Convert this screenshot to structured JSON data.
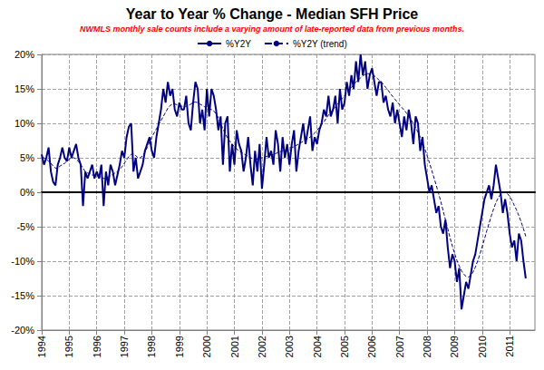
{
  "chart_data": {
    "type": "line",
    "title": "Year to Year % Change - Median SFH Price",
    "subtitle": "NWMLS monthly sale counts include a varying amount of late-reported data from previous months.",
    "categories": [
      "1994",
      null,
      null,
      null,
      null,
      null,
      null,
      null,
      null,
      null,
      null,
      null,
      "1995",
      null,
      null,
      null,
      null,
      null,
      null,
      null,
      null,
      null,
      null,
      null,
      "1996",
      null,
      null,
      null,
      null,
      null,
      null,
      null,
      null,
      null,
      null,
      null,
      "1997",
      null,
      null,
      null,
      null,
      null,
      null,
      null,
      null,
      null,
      null,
      null,
      "1998",
      null,
      null,
      null,
      null,
      null,
      null,
      null,
      null,
      null,
      null,
      null,
      "1999",
      null,
      null,
      null,
      null,
      null,
      null,
      null,
      null,
      null,
      null,
      null,
      "2000",
      null,
      null,
      null,
      null,
      null,
      null,
      null,
      null,
      null,
      null,
      null,
      "2001",
      null,
      null,
      null,
      null,
      null,
      null,
      null,
      null,
      null,
      null,
      null,
      "2002",
      null,
      null,
      null,
      null,
      null,
      null,
      null,
      null,
      null,
      null,
      null,
      "2003",
      null,
      null,
      null,
      null,
      null,
      null,
      null,
      null,
      null,
      null,
      null,
      "2004",
      null,
      null,
      null,
      null,
      null,
      null,
      null,
      null,
      null,
      null,
      null,
      "2005",
      null,
      null,
      null,
      null,
      null,
      null,
      null,
      null,
      null,
      null,
      null,
      "2006",
      null,
      null,
      null,
      null,
      null,
      null,
      null,
      null,
      null,
      null,
      null,
      "2007",
      null,
      null,
      null,
      null,
      null,
      null,
      null,
      null,
      null,
      null,
      null,
      "2008",
      null,
      null,
      null,
      null,
      null,
      null,
      null,
      null,
      null,
      null,
      null,
      "2009",
      null,
      null,
      null,
      null,
      null,
      null,
      null,
      null,
      null,
      null,
      null,
      "2010",
      null,
      null,
      null,
      null,
      null,
      null,
      null,
      null,
      null,
      null,
      null,
      "2011",
      null,
      null,
      null,
      null,
      null,
      null,
      null,
      null,
      null,
      null,
      null
    ],
    "series": [
      {
        "name": "%Y2Y",
        "color": "#000080",
        "line_style": "solid",
        "values": [
          5.5,
          4,
          5,
          6.5,
          3,
          1.5,
          1,
          4,
          5,
          6.5,
          5,
          4.5,
          6.5,
          5,
          6,
          7,
          5,
          4,
          -2,
          3,
          2,
          3,
          4,
          2,
          3,
          2,
          4,
          -2,
          3,
          1,
          4,
          3,
          1,
          2.5,
          4,
          6,
          5,
          8,
          9.5,
          10,
          3,
          5,
          2,
          3,
          4,
          6,
          7,
          8,
          6,
          5,
          8,
          10,
          12,
          15,
          13,
          16,
          14,
          15,
          12,
          11,
          13,
          12,
          12,
          14,
          10,
          9,
          13,
          16,
          15,
          10,
          12,
          9,
          15,
          11,
          15,
          14,
          12,
          9,
          11,
          4,
          10,
          11,
          3,
          7,
          4,
          9,
          7,
          6,
          3,
          5,
          8,
          4,
          1,
          6,
          3,
          7,
          0.5,
          4,
          8,
          5,
          6,
          4,
          9,
          7,
          3,
          8,
          5,
          7,
          4,
          7,
          9,
          3,
          6,
          8,
          10,
          7,
          9,
          11,
          6,
          8,
          7,
          9,
          10,
          12,
          11,
          14,
          11,
          12,
          14,
          10,
          15,
          12,
          13,
          16,
          14,
          17,
          15,
          19,
          16,
          20,
          17,
          19,
          15,
          17,
          18,
          16,
          14,
          16,
          16,
          13,
          14,
          12,
          11,
          13,
          10,
          12,
          10,
          8,
          11,
          9,
          12,
          10,
          7,
          11,
          10,
          6,
          8,
          4,
          2,
          0,
          1,
          -1,
          -3,
          -2,
          -5,
          -6,
          -4,
          -8,
          -11,
          -9,
          -10,
          -13,
          -11,
          -17,
          -15,
          -13,
          -14,
          -12,
          -10,
          -9,
          -7,
          -5,
          -3,
          -1,
          0,
          1,
          -1,
          1,
          4,
          2,
          0,
          -3,
          -1,
          -3,
          -6,
          -8,
          -7,
          -10,
          -6,
          -7,
          -10,
          -12.5,
          null,
          null,
          null,
          null
        ]
      },
      {
        "name": "%Y2Y (trend)",
        "color": "#000080",
        "line_style": "dashed",
        "values": [
          5,
          5,
          4.8,
          4.5,
          4.2,
          3.8,
          3.5,
          3.5,
          3.8,
          4,
          4.2,
          4.5,
          4.8,
          5,
          5,
          4.8,
          4.5,
          4,
          3.5,
          3,
          2.8,
          2.7,
          2.5,
          2.5,
          2.4,
          2.3,
          2.2,
          2,
          2,
          2.2,
          2.4,
          2.6,
          2.8,
          3,
          3.3,
          3.7,
          4.2,
          4.7,
          5.2,
          5.5,
          5.5,
          5.3,
          5,
          5,
          5.3,
          5.8,
          6.5,
          7.3,
          8,
          8.6,
          9.2,
          9.8,
          10.4,
          11,
          11.6,
          12.2,
          12.6,
          12.8,
          12.8,
          12.7,
          12.6,
          12.5,
          12.4,
          12.5,
          12.6,
          12.8,
          13,
          13.1,
          13,
          12.8,
          12.6,
          12.4,
          12.2,
          12.1,
          12,
          11.8,
          11.4,
          10.8,
          10,
          9.2,
          8.5,
          7.9,
          7.4,
          7,
          6.6,
          6.3,
          6,
          5.8,
          5.6,
          5.4,
          5.2,
          5,
          4.9,
          4.8,
          4.8,
          4.9,
          5,
          5.1,
          5.2,
          5.3,
          5.4,
          5.5,
          5.6,
          5.8,
          5.9,
          6,
          6.1,
          6.3,
          6.4,
          6.5,
          6.6,
          6.8,
          7,
          7.2,
          7.4,
          7.6,
          7.8,
          8,
          8.3,
          8.6,
          9,
          9.4,
          9.8,
          10.2,
          10.7,
          11.2,
          11.6,
          12,
          12.4,
          12.8,
          13.2,
          13.6,
          14,
          14.4,
          14.8,
          15.2,
          15.6,
          16,
          16.3,
          16.6,
          16.9,
          17.1,
          17.2,
          17.2,
          17.1,
          16.9,
          16.6,
          16.3,
          16,
          15.6,
          15.2,
          14.8,
          14.3,
          13.9,
          13.5,
          13.1,
          12.7,
          12.3,
          11.9,
          11.5,
          11,
          10.5,
          10,
          9.4,
          8.7,
          8,
          7.2,
          6.3,
          5.3,
          4.3,
          3.2,
          2.1,
          1,
          -0.2,
          -1.4,
          -2.7,
          -4,
          -5.3,
          -6.6,
          -7.8,
          -8.9,
          -9.9,
          -10.7,
          -11.4,
          -11.9,
          -12.2,
          -12.3,
          -12.1,
          -11.6,
          -10.9,
          -10,
          -9,
          -7.9,
          -6.8,
          -5.6,
          -4.5,
          -3.4,
          -2.4,
          -1.5,
          -0.8,
          -0.3,
          0,
          0,
          -0.2,
          -0.6,
          -1.2,
          -1.9,
          -2.6,
          -3.4,
          -4.3,
          -5.3,
          -6.4,
          null,
          null,
          null,
          null
        ]
      }
    ],
    "ylim": [
      -20,
      20
    ],
    "yticks": [
      {
        "value": -20,
        "label": "-20%"
      },
      {
        "value": -15,
        "label": "-15%"
      },
      {
        "value": -10,
        "label": "-10%"
      },
      {
        "value": -5,
        "label": "-5%"
      },
      {
        "value": 0,
        "label": "0%"
      },
      {
        "value": 5,
        "label": "5%"
      },
      {
        "value": 10,
        "label": "10%"
      },
      {
        "value": 15,
        "label": "15%"
      },
      {
        "value": 20,
        "label": "20%"
      }
    ],
    "grid": true,
    "legend": "top"
  }
}
